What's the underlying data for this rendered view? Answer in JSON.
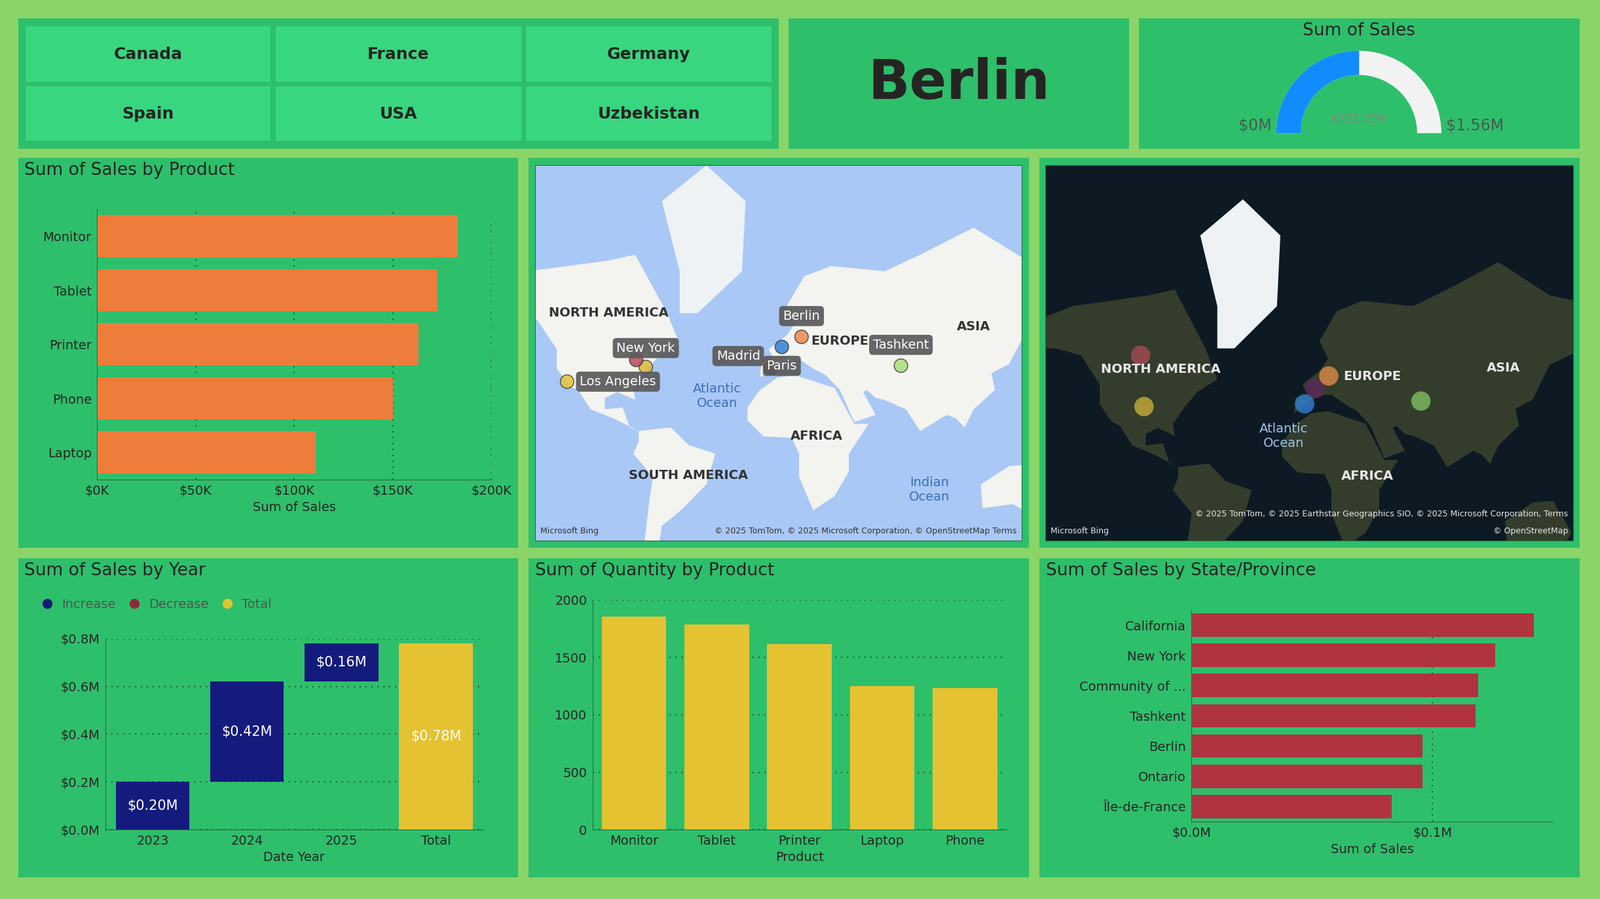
{
  "chart_data": [
    {
      "type": "slicer",
      "categories": [
        "Canada",
        "France",
        "Germany",
        "Spain",
        "USA",
        "Uzbekistan"
      ]
    },
    {
      "type": "card",
      "title": "Berlin"
    },
    {
      "type": "gauge",
      "title": "Sum of Sales",
      "values": [
        781850
      ],
      "value_labels": [
        "$781.85K"
      ],
      "ylim": [
        0,
        1560000
      ],
      "yticks": [
        {
          "value": 0,
          "label": "$0M"
        },
        {
          "value": 1560000,
          "label": "$1.56M"
        }
      ],
      "color": "#118dff"
    },
    {
      "type": "bar",
      "title": "Sum of Sales by Product",
      "orientation": "horizontal",
      "categories": [
        "Monitor",
        "Tablet",
        "Printer",
        "Phone",
        "Laptop"
      ],
      "values": [
        183000,
        172500,
        163000,
        150000,
        111000
      ],
      "color": "#ee7d3b",
      "xlim": [
        0,
        200000
      ],
      "xticks": [
        {
          "value": 0,
          "label": "$0K"
        },
        {
          "value": 50000,
          "label": "$50K"
        },
        {
          "value": 100000,
          "label": "$100K"
        },
        {
          "value": 150000,
          "label": "$150K"
        },
        {
          "value": 200000,
          "label": "$200K"
        }
      ],
      "xlabel": "Sum of Sales",
      "grid": true
    },
    {
      "type": "map",
      "categories": [
        "Los Angeles",
        "New York",
        null,
        "Madrid",
        "Paris",
        "Berlin",
        "Tashkent"
      ],
      "x": [
        -118.2,
        -74.0,
        -79.4,
        -3.7,
        2.35,
        13.4,
        69.2
      ],
      "y": [
        34.05,
        40.7,
        43.7,
        40.4,
        48.86,
        52.5,
        41.3
      ],
      "colors": [
        "#e3c23a",
        "#d9b93c",
        "#b84a5a",
        "#6b2d6b",
        "#2f7fd8",
        "#e8894a",
        "#a8e07a"
      ],
      "xlim": [
        -136,
        137
      ],
      "ylim": [
        -48,
        83
      ],
      "tick_labels": false,
      "annotations": [
        {
          "text": "NORTH AMERICA",
          "x": -95,
          "y": 60
        },
        {
          "text": "EUROPE",
          "x": 35,
          "y": 51
        },
        {
          "text": "ASIA",
          "x": 110,
          "y": 56
        },
        {
          "text": "AFRICA",
          "x": 22,
          "y": 5
        },
        {
          "text": "SOUTH AMERICA",
          "x": -50,
          "y": -17
        },
        {
          "text": "Atlantic\nOcean",
          "x": -34,
          "y": 27
        },
        {
          "text": "Indian\nOcean",
          "x": 85,
          "y": -25
        }
      ],
      "credits": [
        "Microsoft Bing",
        "© 2025 TomTom, © 2025 Microsoft Corporation, © OpenStreetMap Terms"
      ]
    },
    {
      "type": "map",
      "x": [
        -100,
        -98,
        2.5,
        10.4,
        -3.7,
        64.5
      ],
      "y": [
        58,
        39,
        46.5,
        51.2,
        40.2,
        41.4
      ],
      "colors": [
        "#a84a55",
        "#c9ad3a",
        "#5a2a5a",
        "#e08a4a",
        "#2f7fd0",
        "#7fc060"
      ],
      "xlim": [
        -156,
        154
      ],
      "ylim": [
        -32,
        85
      ],
      "tick_labels": false,
      "annotations": [
        {
          "text": "NORTH AMERICA",
          "x": -88,
          "y": 53.5
        },
        {
          "text": "EUROPE",
          "x": 36,
          "y": 51
        },
        {
          "text": "ASIA",
          "x": 113,
          "y": 54
        },
        {
          "text": "Atlantic\nOcean",
          "x": -16,
          "y": 25
        },
        {
          "text": "AFRICA",
          "x": 33,
          "y": 3
        }
      ],
      "credits": [
        "Microsoft Bing",
        "© 2025 TomTom, © 2025 Earthstar Geographics SIO, © 2025 Microsoft Corporation, Terms",
        "© OpenStreetMap"
      ]
    },
    {
      "type": "waterfall",
      "title": "Sum of Sales by Year",
      "categories": [
        "2023",
        "2024",
        "2025",
        "Total"
      ],
      "series": [
        {
          "name": "Increase",
          "type": "increase",
          "color": "#141b7c",
          "values": [
            0.2,
            0.42,
            0.16,
            null
          ],
          "value_labels": [
            "$0.20M",
            "$0.42M",
            "$0.16M",
            null
          ]
        },
        {
          "name": "Decrease",
          "type": "decrease",
          "color": "#8b2b3a",
          "values": [
            null,
            null,
            null,
            null
          ]
        },
        {
          "name": "Total",
          "type": "total",
          "color": "#e4c232",
          "values": [
            null,
            null,
            null,
            0.78
          ],
          "value_labels": [
            null,
            null,
            null,
            "$0.78M"
          ]
        }
      ],
      "ylim": [
        0,
        0.8
      ],
      "yticks": [
        {
          "value": 0,
          "label": "$0.0M"
        },
        {
          "value": 0.2,
          "label": "$0.2M"
        },
        {
          "value": 0.4,
          "label": "$0.4M"
        },
        {
          "value": 0.6,
          "label": "$0.6M"
        },
        {
          "value": 0.8,
          "label": "$0.8M"
        }
      ],
      "xlabel": "Date Year",
      "legend": "upper left",
      "data_labels": true,
      "grid": true
    },
    {
      "type": "bar",
      "title": "Sum of Quantity by Product",
      "categories": [
        "Monitor",
        "Tablet",
        "Printer",
        "Laptop",
        "Phone"
      ],
      "values": [
        1858,
        1787,
        1618,
        1253,
        1236
      ],
      "color": "#e4c232",
      "ylim": [
        0,
        2000
      ],
      "yticks": [
        0,
        500,
        1000,
        1500,
        2000
      ],
      "xlabel": "Product",
      "grid": true
    },
    {
      "type": "bar",
      "title": "Sum of Sales by State/Province",
      "orientation": "horizontal",
      "categories": [
        "California",
        "New York",
        "Community of ...",
        "Tashkent",
        "Berlin",
        "Ontario",
        "Île-de-France"
      ],
      "values": [
        0.142,
        0.126,
        0.119,
        0.118,
        0.096,
        0.096,
        0.083
      ],
      "color": "#b03340",
      "xlim": [
        0,
        0.15
      ],
      "xticks": [
        {
          "value": 0,
          "label": "$0.0M"
        },
        {
          "value": 0.1,
          "label": "$0.1M"
        }
      ],
      "xlabel": "Sum of Sales",
      "grid": true
    }
  ]
}
